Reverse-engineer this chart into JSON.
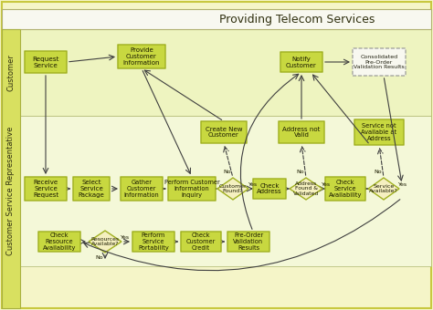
{
  "title": "Providing Telecom Services",
  "bg_outer": "#f5f5c8",
  "bg_inner": "#f0f5d0",
  "lane1_label": "Customer",
  "lane2_label": "Customer Service Representative",
  "lane1_color": "#e8f0a0",
  "lane2_color": "#f0f5d0",
  "box_fill": "#c8d840",
  "box_edge": "#a0b020",
  "diamond_fill": "#f5f0c0",
  "diamond_edge": "#a0b020",
  "dashed_box_fill": "#f8f8f8",
  "dashed_box_edge": "#808080",
  "title_fontsize": 9,
  "label_fontsize": 5.5,
  "lane_label_fontsize": 6
}
